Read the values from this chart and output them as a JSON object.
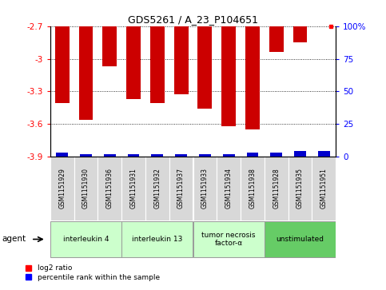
{
  "title": "GDS5261 / A_23_P104651",
  "samples": [
    "GSM1151929",
    "GSM1151930",
    "GSM1151936",
    "GSM1151931",
    "GSM1151932",
    "GSM1151937",
    "GSM1151933",
    "GSM1151934",
    "GSM1151938",
    "GSM1151928",
    "GSM1151935",
    "GSM1151951"
  ],
  "log2_ratio": [
    -3.41,
    -3.56,
    -3.07,
    -3.37,
    -3.41,
    -3.33,
    -3.46,
    -3.62,
    -3.65,
    -2.94,
    -2.85,
    -2.7
  ],
  "percentile": [
    3,
    2,
    2,
    2,
    2,
    2,
    2,
    2,
    3,
    3,
    4,
    4
  ],
  "groups": [
    {
      "label": "interleukin 4",
      "start": 0,
      "end": 2,
      "color": "#ccffcc"
    },
    {
      "label": "interleukin 13",
      "start": 3,
      "end": 5,
      "color": "#ccffcc"
    },
    {
      "label": "tumor necrosis\nfactor-α",
      "start": 6,
      "end": 8,
      "color": "#ccffcc"
    },
    {
      "label": "unstimulated",
      "start": 9,
      "end": 11,
      "color": "#66cc66"
    }
  ],
  "ylim": [
    -3.9,
    -2.7
  ],
  "yticks": [
    -3.9,
    -3.6,
    -3.3,
    -3.0,
    -2.7
  ],
  "ytick_labels": [
    "-3.9",
    "-3.6",
    "-3.3",
    "-3",
    "-2.7"
  ],
  "right_yticks": [
    0,
    25,
    50,
    75,
    100
  ],
  "right_ytick_labels": [
    "0",
    "25",
    "50",
    "75",
    "100%"
  ],
  "bar_color": "#cc0000",
  "percentile_color": "#0000cc",
  "background_color": "#ffffff",
  "plot_bg_color": "#ffffff",
  "bar_width": 0.6,
  "pct_bar_width": 0.5
}
